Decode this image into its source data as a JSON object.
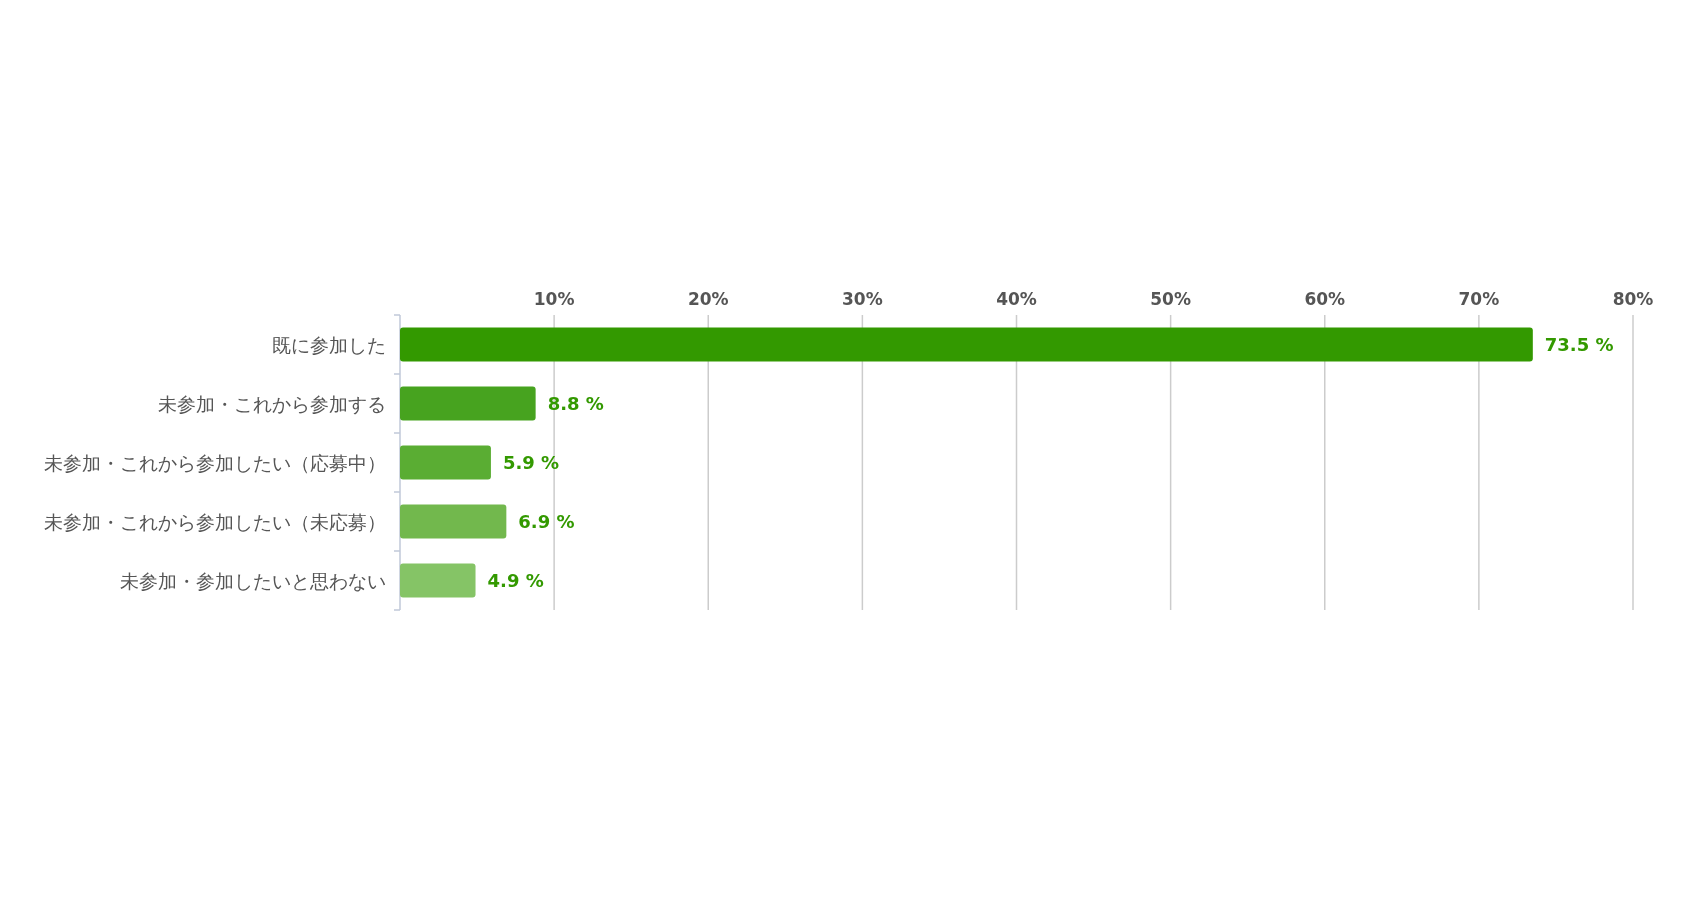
{
  "chart_data": {
    "type": "bar",
    "orientation": "horizontal",
    "categories": [
      "既に参加した",
      "未参加・これから参加する",
      "未参加・これから参加したい（応募中）",
      "未参加・これから参加したい（未応募）",
      "未参加・参加したいと思わない"
    ],
    "values": [
      73.5,
      8.8,
      5.9,
      6.9,
      4.9
    ],
    "colors": [
      "#339900",
      "#47a31f",
      "#5aad33",
      "#72b84d",
      "#85c466"
    ],
    "value_labels": [
      "73.5 %",
      "8.8 %",
      "5.9 %",
      "6.9 %",
      "4.9 %"
    ],
    "xlim": [
      0,
      80
    ],
    "xticks": [
      {
        "value": 10,
        "label": "10%"
      },
      {
        "value": 20,
        "label": "20%"
      },
      {
        "value": 30,
        "label": "30%"
      },
      {
        "value": 40,
        "label": "40%"
      },
      {
        "value": 50,
        "label": "50%"
      },
      {
        "value": 60,
        "label": "60%"
      },
      {
        "value": 70,
        "label": "70%"
      },
      {
        "value": 80,
        "label": "80%"
      }
    ],
    "grid": "x"
  }
}
